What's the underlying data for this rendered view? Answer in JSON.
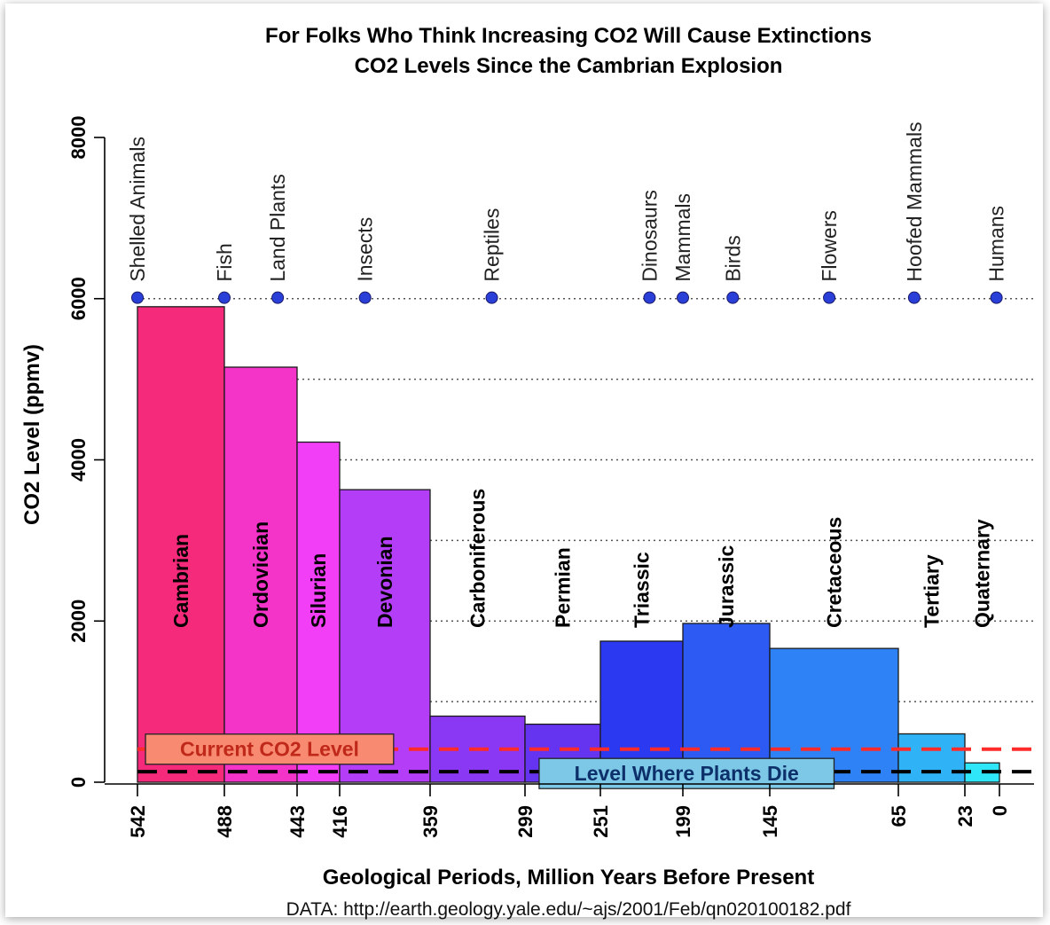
{
  "chart_data": {
    "type": "bar",
    "title": "For Folks Who Think Increasing CO2 Will Cause Extinctions",
    "subtitle": "CO2 Levels Since the Cambrian Explosion",
    "xlabel": "Geological Periods, Million Years Before Present",
    "ylabel": "CO2 Level (ppmv)",
    "source": "DATA: http://earth.geology.yale.edu/~ajs/2001/Feb/qn020100182.pdf",
    "x_reversed": true,
    "xlim": [
      580,
      -30
    ],
    "ylim": [
      0,
      8500
    ],
    "y_ticks": [
      0,
      2000,
      4000,
      6000,
      8000
    ],
    "y_gridlines": [
      1000,
      2000,
      3000,
      4000,
      5000,
      6000
    ],
    "x_ticks": [
      542,
      488,
      443,
      416,
      359,
      299,
      251,
      199,
      145,
      65,
      23,
      0
    ],
    "periods": [
      {
        "name": "Cambrian",
        "start": 542,
        "end": 488,
        "value": 5900,
        "color": "#f52a7b"
      },
      {
        "name": "Ordovician",
        "start": 488,
        "end": 443,
        "value": 5150,
        "color": "#f433c9"
      },
      {
        "name": "Silurian",
        "start": 443,
        "end": 416,
        "value": 4220,
        "color": "#f23ef6"
      },
      {
        "name": "Devonian",
        "start": 416,
        "end": 359,
        "value": 3630,
        "color": "#b43ef8"
      },
      {
        "name": "Carboniferous",
        "start": 359,
        "end": 299,
        "value": 820,
        "color": "#8b38f4"
      },
      {
        "name": "Permian",
        "start": 299,
        "end": 251,
        "value": 720,
        "color": "#6534f0"
      },
      {
        "name": "Triassic",
        "start": 251,
        "end": 199,
        "value": 1750,
        "color": "#2b3af0"
      },
      {
        "name": "Jurassic",
        "start": 199,
        "end": 145,
        "value": 1970,
        "color": "#2d5af3"
      },
      {
        "name": "Cretaceous",
        "start": 145,
        "end": 65,
        "value": 1660,
        "color": "#2f82f5"
      },
      {
        "name": "Tertiary",
        "start": 65,
        "end": 23,
        "value": 600,
        "color": "#2fb3f6"
      },
      {
        "name": "Quaternary",
        "start": 23,
        "end": 0,
        "value": 240,
        "color": "#2fe6f8"
      }
    ],
    "events": [
      {
        "label": "Shelled Animals",
        "x": 542
      },
      {
        "label": "Fish",
        "x": 488
      },
      {
        "label": "Land Plants",
        "x": 455
      },
      {
        "label": "Insects",
        "x": 400
      },
      {
        "label": "Reptiles",
        "x": 320
      },
      {
        "label": "Dinosaurs",
        "x": 220
      },
      {
        "label": "Mammals",
        "x": 199
      },
      {
        "label": "Birds",
        "x": 168
      },
      {
        "label": "Flowers",
        "x": 108
      },
      {
        "label": "Hoofed Mammals",
        "x": 55
      },
      {
        "label": "Humans",
        "x": 2
      }
    ],
    "event_marker_y": 6100,
    "reference_lines": [
      {
        "label": "Current CO2 Level",
        "value": 410,
        "color": "#ff2b2b",
        "box_color": "#f88a72",
        "label_x_from": 537,
        "label_x_to": 382
      },
      {
        "label": "Level Where Plants Die",
        "value": 130,
        "color": "#000000",
        "box_color": "#7cc8e6",
        "label_x_from": 290,
        "label_x_to": 105
      }
    ]
  }
}
